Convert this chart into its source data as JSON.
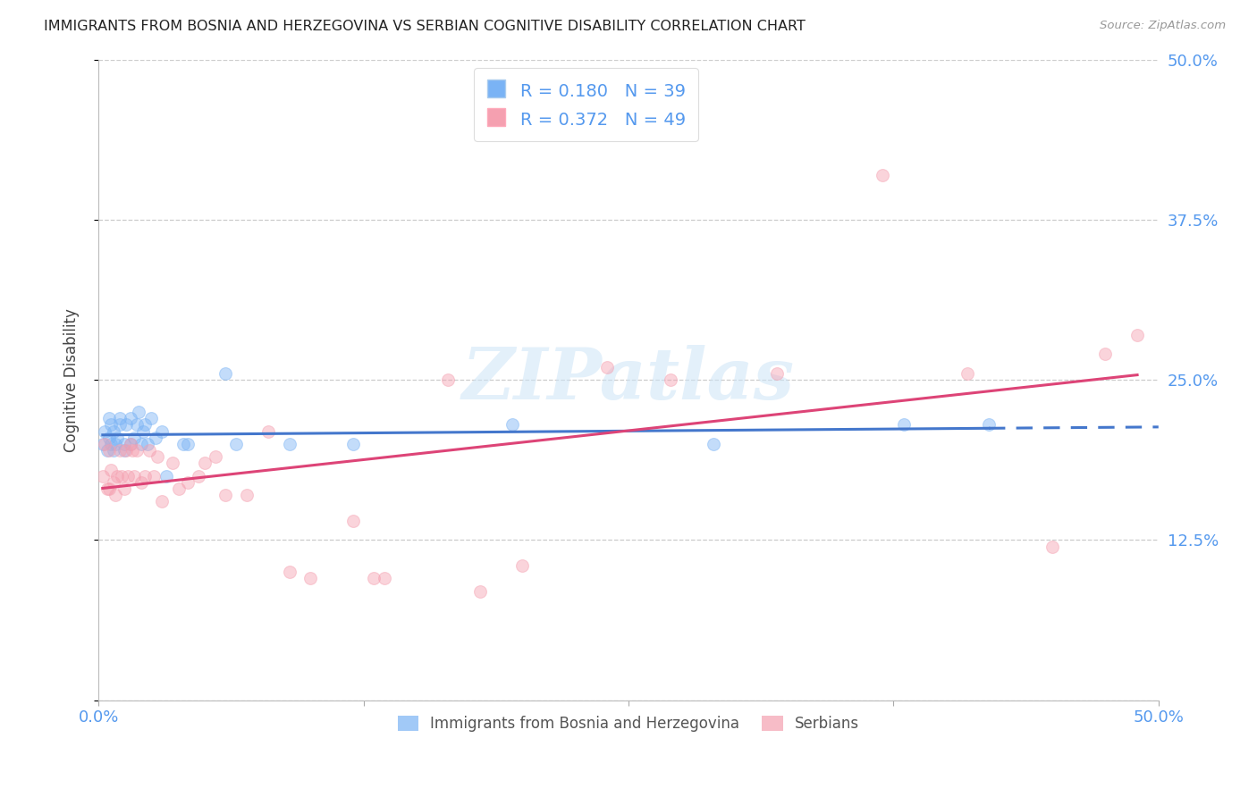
{
  "title": "IMMIGRANTS FROM BOSNIA AND HERZEGOVINA VS SERBIAN COGNITIVE DISABILITY CORRELATION CHART",
  "source": "Source: ZipAtlas.com",
  "ylabel": "Cognitive Disability",
  "xlim": [
    0.0,
    0.5
  ],
  "ylim": [
    0.0,
    0.5
  ],
  "yticks": [
    0.0,
    0.125,
    0.25,
    0.375,
    0.5
  ],
  "ytick_labels": [
    "",
    "12.5%",
    "25.0%",
    "37.5%",
    "50.0%"
  ],
  "xticks": [
    0.0,
    0.125,
    0.25,
    0.375,
    0.5
  ],
  "xtick_labels": [
    "0.0%",
    "",
    "",
    "",
    "50.0%"
  ],
  "bg_color": "#ffffff",
  "grid_color": "#cccccc",
  "watermark_text": "ZIPatlas",
  "blue_color": "#7ab3f5",
  "pink_color": "#f5a0b0",
  "blue_line_color": "#4477cc",
  "pink_line_color": "#dd4477",
  "axis_tick_color": "#5599ee",
  "bosnia_x": [
    0.002,
    0.003,
    0.004,
    0.005,
    0.005,
    0.006,
    0.006,
    0.007,
    0.007,
    0.008,
    0.009,
    0.01,
    0.01,
    0.012,
    0.012,
    0.013,
    0.015,
    0.015,
    0.017,
    0.018,
    0.019,
    0.02,
    0.021,
    0.022,
    0.023,
    0.025,
    0.027,
    0.03,
    0.032,
    0.04,
    0.042,
    0.06,
    0.065,
    0.09,
    0.12,
    0.195,
    0.29,
    0.38,
    0.42
  ],
  "bosnia_y": [
    0.2,
    0.21,
    0.195,
    0.22,
    0.205,
    0.215,
    0.2,
    0.195,
    0.21,
    0.2,
    0.205,
    0.22,
    0.215,
    0.2,
    0.195,
    0.215,
    0.22,
    0.2,
    0.205,
    0.215,
    0.225,
    0.2,
    0.21,
    0.215,
    0.2,
    0.22,
    0.205,
    0.21,
    0.175,
    0.2,
    0.2,
    0.255,
    0.2,
    0.2,
    0.2,
    0.215,
    0.2,
    0.215,
    0.215
  ],
  "serbian_x": [
    0.002,
    0.003,
    0.004,
    0.005,
    0.005,
    0.006,
    0.007,
    0.008,
    0.009,
    0.01,
    0.011,
    0.012,
    0.013,
    0.014,
    0.015,
    0.016,
    0.017,
    0.018,
    0.02,
    0.022,
    0.024,
    0.026,
    0.028,
    0.03,
    0.035,
    0.038,
    0.042,
    0.047,
    0.05,
    0.055,
    0.06,
    0.07,
    0.08,
    0.09,
    0.1,
    0.12,
    0.135,
    0.165,
    0.2,
    0.24,
    0.27,
    0.32,
    0.37,
    0.41,
    0.45,
    0.475,
    0.49,
    0.13,
    0.18
  ],
  "serbian_y": [
    0.175,
    0.2,
    0.165,
    0.165,
    0.195,
    0.18,
    0.17,
    0.16,
    0.175,
    0.195,
    0.175,
    0.165,
    0.195,
    0.175,
    0.2,
    0.195,
    0.175,
    0.195,
    0.17,
    0.175,
    0.195,
    0.175,
    0.19,
    0.155,
    0.185,
    0.165,
    0.17,
    0.175,
    0.185,
    0.19,
    0.16,
    0.16,
    0.21,
    0.1,
    0.095,
    0.14,
    0.095,
    0.25,
    0.105,
    0.26,
    0.25,
    0.255,
    0.41,
    0.255,
    0.12,
    0.27,
    0.285,
    0.095,
    0.085
  ],
  "bosnia_line_x_start": 0.002,
  "bosnia_line_x_solid_end": 0.42,
  "bosnia_line_x_dash_end": 0.5,
  "serbian_line_x_start": 0.002,
  "serbian_line_x_end": 0.49,
  "marker_size": 100,
  "marker_alpha": 0.45
}
